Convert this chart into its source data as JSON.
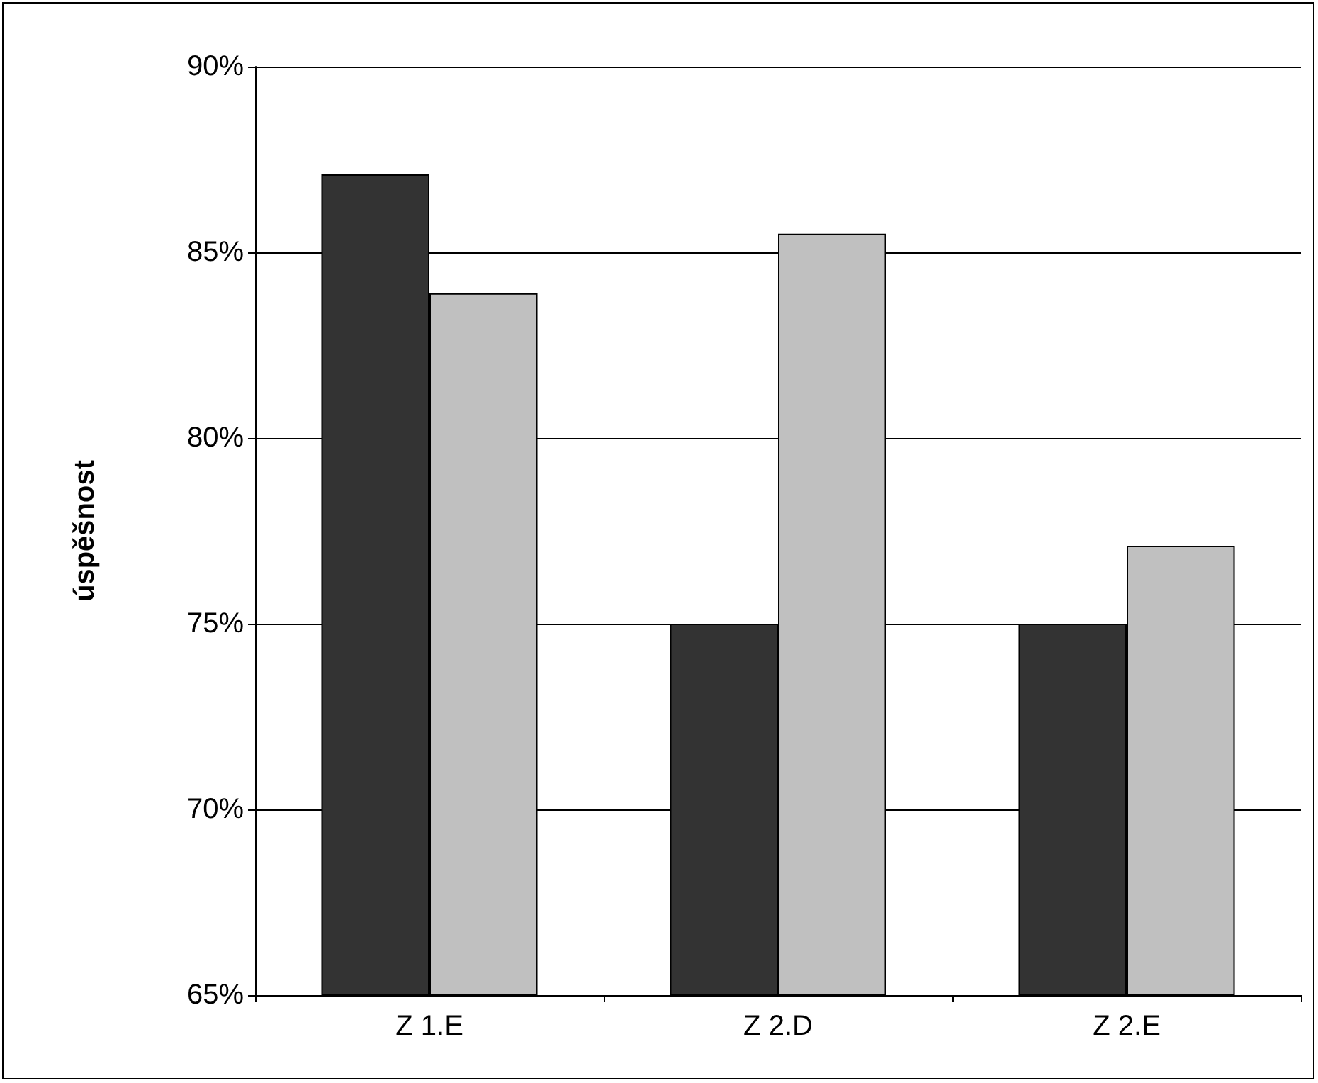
{
  "chart_data": {
    "type": "bar",
    "ylabel": "úspěšnost",
    "categories": [
      "Z 1.E",
      "Z 2.D",
      "Z 2.E"
    ],
    "series": [
      {
        "color": "#333333",
        "values": [
          87.1,
          75,
          75
        ]
      },
      {
        "color": "#c0c0c0",
        "values": [
          83.9,
          85.5,
          77.1
        ]
      }
    ],
    "ylim": [
      65,
      90
    ],
    "yticks": [
      {
        "value": 65,
        "label": "65%"
      },
      {
        "value": 70,
        "label": "70%"
      },
      {
        "value": 75,
        "label": "75%"
      },
      {
        "value": 80,
        "label": "80%"
      },
      {
        "value": 85,
        "label": "85%"
      },
      {
        "value": 90,
        "label": "90%"
      }
    ],
    "grid": "y"
  }
}
